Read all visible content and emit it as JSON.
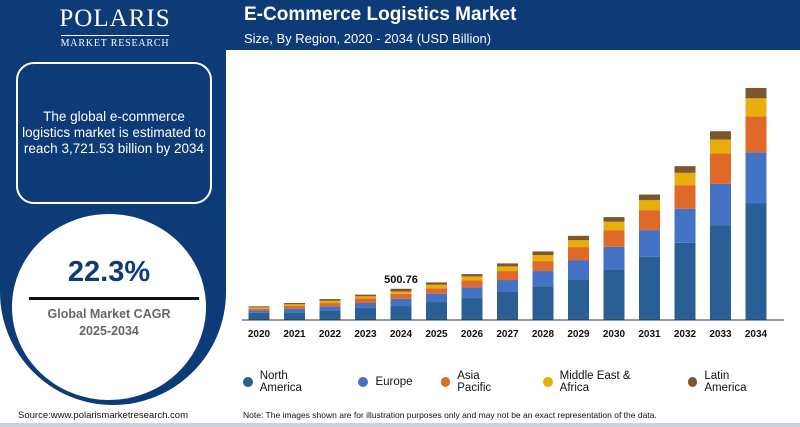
{
  "brand": {
    "name": "POLARIS",
    "sub": "MARKET RESEARCH"
  },
  "header": {
    "title": "E-Commerce Logistics Market",
    "subtitle": "Size, By Region, 2020 - 2034 (USD Billion)"
  },
  "info": {
    "text": "The global e-commerce logistics market is estimated to reach 3,721.53 billion by 2034"
  },
  "cagr": {
    "value": "22.3%",
    "label": "Global Market CAGR",
    "period": "2025-2034"
  },
  "footer": {
    "source": "Source:www.polarismarketresearch.com",
    "note": "Note: The images shown are for illustration purposes only and may not be an exact representation of the data."
  },
  "chart_data": {
    "type": "bar",
    "stacked": true,
    "title": "E-Commerce Logistics Market",
    "subtitle": "Size, By Region, 2020 - 2034 (USD Billion)",
    "categories": [
      "2020",
      "2021",
      "2022",
      "2023",
      "2024",
      "2025",
      "2026",
      "2027",
      "2028",
      "2029",
      "2030",
      "2031",
      "2032",
      "2033",
      "2034"
    ],
    "series": [
      {
        "name": "North America",
        "color": "#2a5f96",
        "values": [
          117,
          123,
          155,
          198,
          224,
          288,
          352,
          449,
          539,
          651,
          812,
          1015,
          1239,
          1522,
          1869
        ]
      },
      {
        "name": "Europe",
        "color": "#4472c4",
        "values": [
          37,
          59,
          64,
          75,
          117,
          134,
          171,
          192,
          246,
          310,
          363,
          427,
          545,
          662,
          822
        ]
      },
      {
        "name": "Asia Pacific",
        "color": "#e0692a",
        "values": [
          27,
          43,
          53,
          75,
          80,
          85,
          112,
          144,
          160,
          208,
          267,
          320,
          379,
          486,
          577
        ]
      },
      {
        "name": "Middle East & Africa",
        "color": "#e8ae0c",
        "values": [
          21,
          27,
          37,
          32,
          37,
          59,
          64,
          75,
          96,
          112,
          134,
          160,
          198,
          224,
          288
        ]
      },
      {
        "name": "Latin America",
        "color": "#7f5530",
        "values": [
          17,
          21,
          27,
          27,
          43,
          37,
          37,
          48,
          59,
          69,
          75,
          91,
          107,
          134,
          166
        ]
      }
    ],
    "annotations": [
      {
        "category": "2024",
        "label": "500.76"
      }
    ],
    "legend": "bottom",
    "grid": false,
    "ylim": [
      0,
      3800
    ]
  }
}
